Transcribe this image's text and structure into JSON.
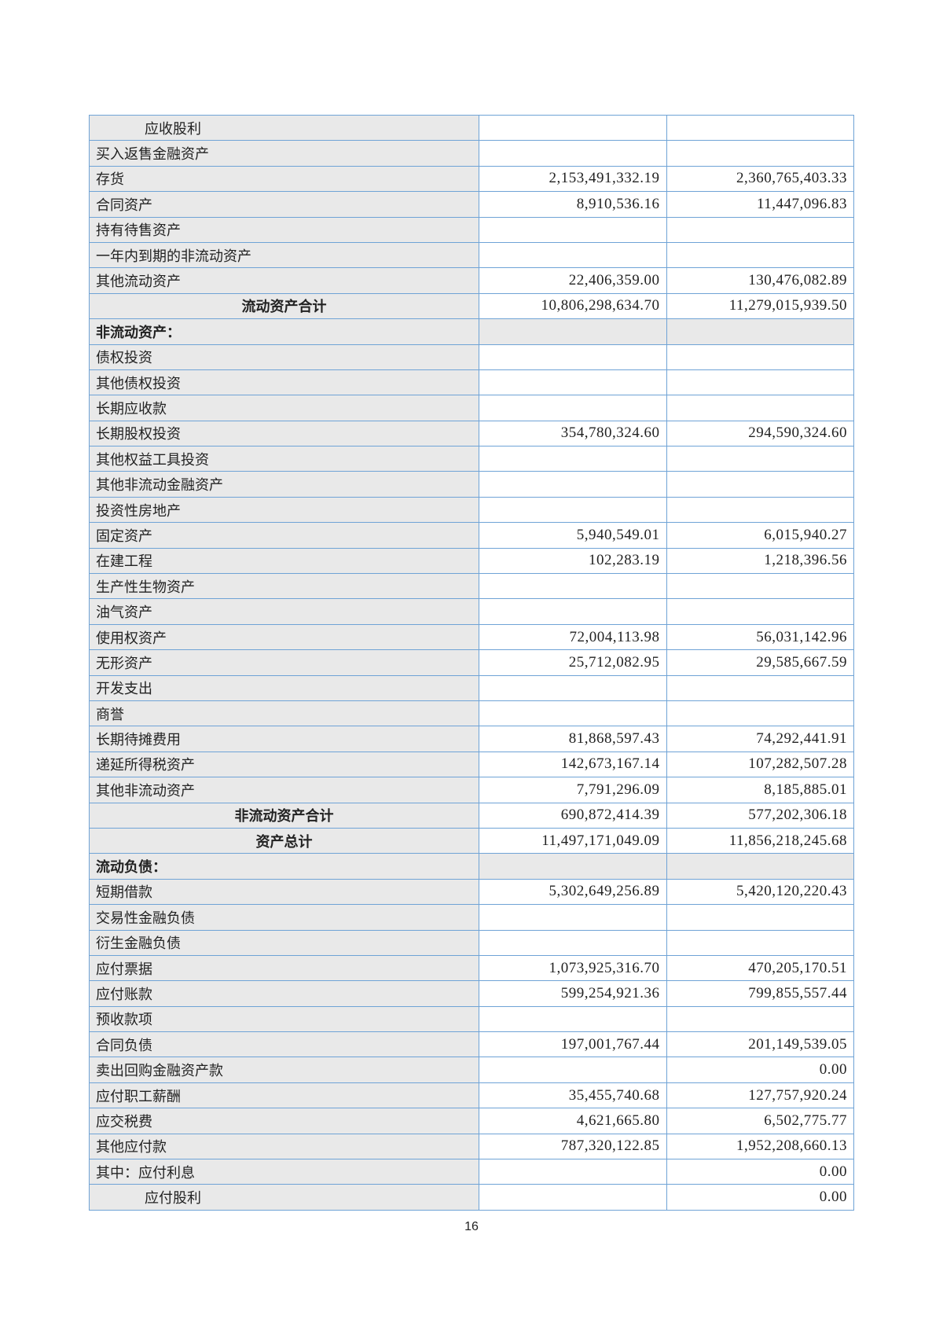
{
  "rows": [
    {
      "label": "应收股利",
      "current": "",
      "previous": "",
      "type": "indent"
    },
    {
      "label": "买入返售金融资产",
      "current": "",
      "previous": "",
      "type": "normal"
    },
    {
      "label": "存货",
      "current": "2,153,491,332.19",
      "previous": "2,360,765,403.33",
      "type": "normal"
    },
    {
      "label": "合同资产",
      "current": "8,910,536.16",
      "previous": "11,447,096.83",
      "type": "normal"
    },
    {
      "label": "持有待售资产",
      "current": "",
      "previous": "",
      "type": "normal"
    },
    {
      "label": "一年内到期的非流动资产",
      "current": "",
      "previous": "",
      "type": "normal"
    },
    {
      "label": "其他流动资产",
      "current": "22,406,359.00",
      "previous": "130,476,082.89",
      "type": "normal"
    },
    {
      "label": "流动资产合计",
      "current": "10,806,298,634.70",
      "previous": "11,279,015,939.50",
      "type": "total"
    },
    {
      "label": "非流动资产：",
      "current": "",
      "previous": "",
      "type": "section"
    },
    {
      "label": "债权投资",
      "current": "",
      "previous": "",
      "type": "normal"
    },
    {
      "label": "其他债权投资",
      "current": "",
      "previous": "",
      "type": "normal"
    },
    {
      "label": "长期应收款",
      "current": "",
      "previous": "",
      "type": "normal"
    },
    {
      "label": "长期股权投资",
      "current": "354,780,324.60",
      "previous": "294,590,324.60",
      "type": "normal"
    },
    {
      "label": "其他权益工具投资",
      "current": "",
      "previous": "",
      "type": "normal"
    },
    {
      "label": "其他非流动金融资产",
      "current": "",
      "previous": "",
      "type": "normal"
    },
    {
      "label": "投资性房地产",
      "current": "",
      "previous": "",
      "type": "normal"
    },
    {
      "label": "固定资产",
      "current": "5,940,549.01",
      "previous": "6,015,940.27",
      "type": "normal"
    },
    {
      "label": "在建工程",
      "current": "102,283.19",
      "previous": "1,218,396.56",
      "type": "normal"
    },
    {
      "label": "生产性生物资产",
      "current": "",
      "previous": "",
      "type": "normal"
    },
    {
      "label": "油气资产",
      "current": "",
      "previous": "",
      "type": "normal"
    },
    {
      "label": "使用权资产",
      "current": "72,004,113.98",
      "previous": "56,031,142.96",
      "type": "normal"
    },
    {
      "label": "无形资产",
      "current": "25,712,082.95",
      "previous": "29,585,667.59",
      "type": "normal"
    },
    {
      "label": "开发支出",
      "current": "",
      "previous": "",
      "type": "normal"
    },
    {
      "label": "商誉",
      "current": "",
      "previous": "",
      "type": "normal"
    },
    {
      "label": "长期待摊费用",
      "current": "81,868,597.43",
      "previous": "74,292,441.91",
      "type": "normal"
    },
    {
      "label": "递延所得税资产",
      "current": "142,673,167.14",
      "previous": "107,282,507.28",
      "type": "normal"
    },
    {
      "label": "其他非流动资产",
      "current": "7,791,296.09",
      "previous": "8,185,885.01",
      "type": "normal"
    },
    {
      "label": "非流动资产合计",
      "current": "690,872,414.39",
      "previous": "577,202,306.18",
      "type": "total"
    },
    {
      "label": "资产总计",
      "current": "11,497,171,049.09",
      "previous": "11,856,218,245.68",
      "type": "total"
    },
    {
      "label": "流动负债：",
      "current": "",
      "previous": "",
      "type": "section"
    },
    {
      "label": "短期借款",
      "current": "5,302,649,256.89",
      "previous": "5,420,120,220.43",
      "type": "normal"
    },
    {
      "label": "交易性金融负债",
      "current": "",
      "previous": "",
      "type": "normal"
    },
    {
      "label": "衍生金融负债",
      "current": "",
      "previous": "",
      "type": "normal"
    },
    {
      "label": "应付票据",
      "current": "1,073,925,316.70",
      "previous": "470,205,170.51",
      "type": "normal"
    },
    {
      "label": "应付账款",
      "current": "599,254,921.36",
      "previous": "799,855,557.44",
      "type": "normal"
    },
    {
      "label": "预收款项",
      "current": "",
      "previous": "",
      "type": "normal"
    },
    {
      "label": "合同负债",
      "current": "197,001,767.44",
      "previous": "201,149,539.05",
      "type": "normal"
    },
    {
      "label": "卖出回购金融资产款",
      "current": "",
      "previous": "0.00",
      "type": "normal"
    },
    {
      "label": "应付职工薪酬",
      "current": "35,455,740.68",
      "previous": "127,757,920.24",
      "type": "normal"
    },
    {
      "label": "应交税费",
      "current": "4,621,665.80",
      "previous": "6,502,775.77",
      "type": "normal"
    },
    {
      "label": "其他应付款",
      "current": "787,320,122.85",
      "previous": "1,952,208,660.13",
      "type": "normal"
    },
    {
      "label": "其中：应付利息",
      "current": "",
      "previous": "0.00",
      "type": "normal"
    },
    {
      "label": "应付股利",
      "current": "",
      "previous": "0.00",
      "type": "indent"
    }
  ],
  "page_number": "16"
}
